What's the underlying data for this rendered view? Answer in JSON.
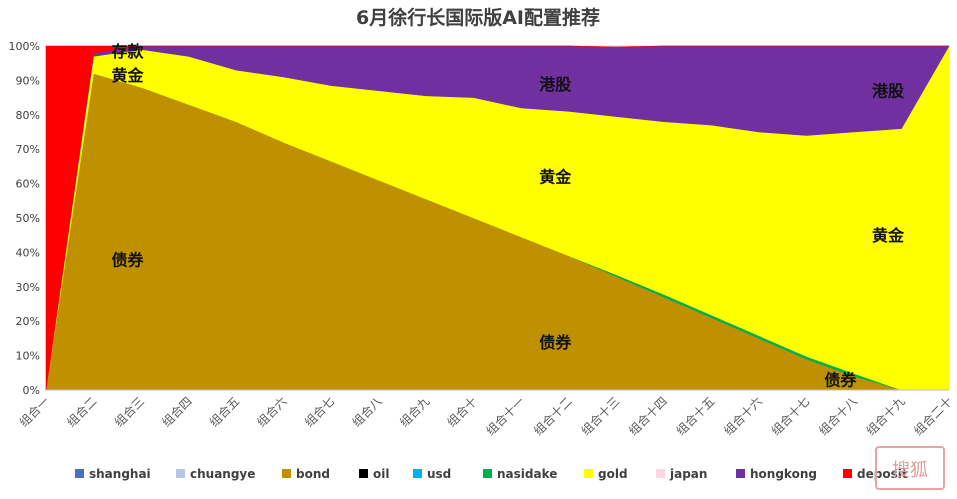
{
  "chart_data": {
    "type": "area",
    "stacked": "percent",
    "title": "6月徐行长国际版AI配置推荐",
    "categories": [
      "组合一",
      "组合二",
      "组合三",
      "组合四",
      "组合五",
      "组合六",
      "组合七",
      "组合八",
      "组合九",
      "组合十",
      "组合十一",
      "组合十二",
      "组合十三",
      "组合十四",
      "组合十五",
      "组合十六",
      "组合十七",
      "组合十八",
      "组合十九",
      "组合二十"
    ],
    "ylim": [
      0,
      100
    ],
    "yticks": [
      "0%",
      "10%",
      "20%",
      "30%",
      "40%",
      "50%",
      "60%",
      "70%",
      "80%",
      "90%",
      "100%"
    ],
    "legend_position": "bottom",
    "series": [
      {
        "name": "shanghai",
        "color": "#4472c4",
        "values": [
          0,
          0,
          0,
          0,
          0,
          0,
          0,
          0,
          0,
          0,
          0,
          0,
          0,
          0,
          0,
          0,
          0,
          0,
          0,
          0
        ]
      },
      {
        "name": "chuangye",
        "color": "#b4c7e7",
        "values": [
          0,
          0,
          0,
          0,
          0,
          0,
          0,
          0,
          0,
          0,
          0,
          0,
          0,
          0,
          0,
          0,
          0,
          0,
          0,
          0
        ]
      },
      {
        "name": "bond",
        "color": "#bf9000",
        "values": [
          0,
          92,
          88,
          83,
          78,
          72,
          66.5,
          61,
          55.5,
          50,
          44.5,
          39,
          33,
          27,
          21,
          15,
          9,
          4,
          0,
          0
        ]
      },
      {
        "name": "oil",
        "color": "#000000",
        "values": [
          0,
          0,
          0,
          0,
          0,
          0,
          0,
          0,
          0,
          0,
          0,
          0,
          0,
          0,
          0,
          0,
          0,
          0,
          0,
          0
        ]
      },
      {
        "name": "usd",
        "color": "#00b0f0",
        "values": [
          0,
          0,
          0,
          0,
          0,
          0,
          0,
          0,
          0,
          0,
          0,
          0,
          0,
          0,
          0,
          0,
          0,
          0,
          0,
          0
        ]
      },
      {
        "name": "nasidake",
        "color": "#00b050",
        "values": [
          0,
          0,
          0,
          0,
          0,
          0,
          0,
          0,
          0,
          0,
          0,
          0,
          0.5,
          0.8,
          0.8,
          0.8,
          0.8,
          0.8,
          0,
          0
        ]
      },
      {
        "name": "gold",
        "color": "#ffff00",
        "values": [
          0,
          5,
          11,
          14,
          15,
          19,
          22,
          26,
          30,
          35,
          37.5,
          42,
          46,
          50.2,
          55.2,
          59.2,
          64.2,
          70.2,
          76,
          100
        ]
      },
      {
        "name": "japan",
        "color": "#ffd7e4",
        "values": [
          0,
          0,
          0,
          0,
          0,
          0,
          0,
          0,
          0,
          0,
          0,
          0,
          0,
          0,
          0,
          0,
          0,
          0,
          0,
          0
        ]
      },
      {
        "name": "hongkong",
        "color": "#7030a0",
        "values": [
          0,
          1,
          1,
          3,
          7,
          9,
          11.5,
          13,
          14.5,
          15,
          18,
          19,
          20.2,
          22,
          23,
          25,
          26,
          25,
          24,
          0
        ]
      },
      {
        "name": "deposit",
        "color": "#ff0000",
        "values": [
          100,
          2,
          0,
          0,
          0,
          0,
          0,
          0,
          0,
          0,
          0,
          0,
          0,
          0,
          0,
          0,
          0,
          0,
          0,
          0
        ]
      }
    ],
    "annotations": [
      {
        "text": "存款",
        "category": "组合二",
        "value": 98.5
      },
      {
        "text": "黄金",
        "category": "组合二",
        "value": 91.5
      },
      {
        "text": "债券",
        "category": "组合二",
        "value": 38
      },
      {
        "text": "港股",
        "category": "组合十一",
        "value": 89
      },
      {
        "text": "黄金",
        "category": "组合十一",
        "value": 62
      },
      {
        "text": "债券",
        "category": "组合十一",
        "value": 14
      },
      {
        "text": "港股",
        "category": "组合十八",
        "value": 87
      },
      {
        "text": "黄金",
        "category": "组合十八",
        "value": 45
      },
      {
        "text": "债券",
        "category": "组合十七",
        "value": 3
      }
    ]
  },
  "watermark": {
    "text": "搜狐"
  }
}
